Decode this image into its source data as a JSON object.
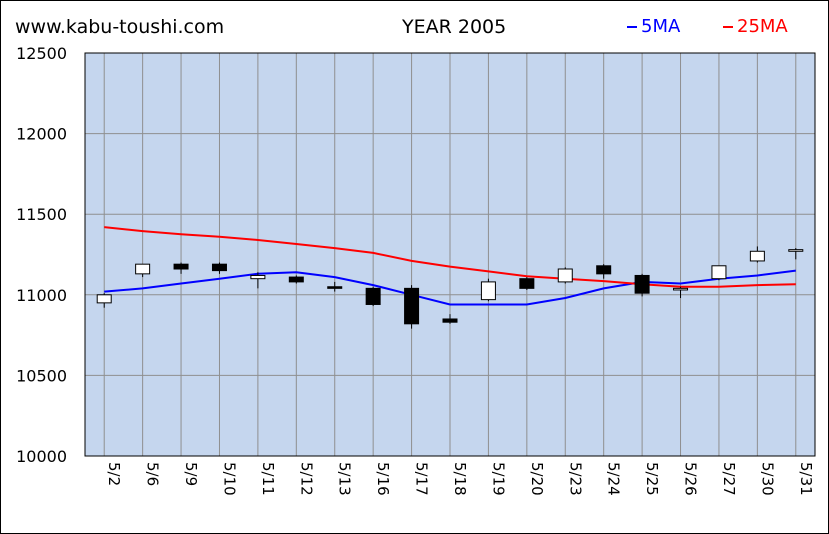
{
  "header": {
    "site": "www.kabu-toushi.com",
    "title": "YEAR 2005"
  },
  "legend": [
    {
      "label": "5MA",
      "color": "#0000ff"
    },
    {
      "label": "25MA",
      "color": "#ff0000"
    }
  ],
  "chart_data": {
    "type": "candlestick",
    "title": "YEAR 2005",
    "plot_bg": "#c5d6ee",
    "grid": true,
    "ylim": [
      10000,
      12500
    ],
    "y_ticks": [
      10000,
      10500,
      11000,
      11500,
      12000,
      12500
    ],
    "categories": [
      "5/2",
      "5/6",
      "5/9",
      "5/10",
      "5/11",
      "5/12",
      "5/13",
      "5/16",
      "5/17",
      "5/18",
      "5/19",
      "5/20",
      "5/23",
      "5/24",
      "5/25",
      "5/26",
      "5/27",
      "5/30",
      "5/31"
    ],
    "candles": [
      {
        "open": 10950,
        "close": 11000,
        "high": 11010,
        "low": 10920
      },
      {
        "open": 11130,
        "close": 11190,
        "high": 11190,
        "low": 11110
      },
      {
        "open": 11190,
        "close": 11160,
        "high": 11200,
        "low": 11130
      },
      {
        "open": 11190,
        "close": 11150,
        "high": 11200,
        "low": 11130
      },
      {
        "open": 11100,
        "close": 11120,
        "high": 11140,
        "low": 11040
      },
      {
        "open": 11110,
        "close": 11080,
        "high": 11120,
        "low": 11070
      },
      {
        "open": 11050,
        "close": 11040,
        "high": 11080,
        "low": 11020
      },
      {
        "open": 11040,
        "close": 10940,
        "high": 11050,
        "low": 10930
      },
      {
        "open": 11040,
        "close": 10820,
        "high": 11060,
        "low": 10790
      },
      {
        "open": 10850,
        "close": 10830,
        "high": 10880,
        "low": 10820
      },
      {
        "open": 10970,
        "close": 11080,
        "high": 11100,
        "low": 10960
      },
      {
        "open": 11100,
        "close": 11040,
        "high": 11110,
        "low": 11030
      },
      {
        "open": 11080,
        "close": 11160,
        "high": 11170,
        "low": 11070
      },
      {
        "open": 11180,
        "close": 11130,
        "high": 11190,
        "low": 11100
      },
      {
        "open": 11120,
        "close": 11010,
        "high": 11130,
        "low": 10990
      },
      {
        "open": 11030,
        "close": 11040,
        "high": 11050,
        "low": 10980
      },
      {
        "open": 11100,
        "close": 11180,
        "high": 11180,
        "low": 11090
      },
      {
        "open": 11210,
        "close": 11270,
        "high": 11300,
        "low": 11200
      },
      {
        "open": 11270,
        "close": 11280,
        "high": 11290,
        "low": 11220
      }
    ],
    "series": [
      {
        "name": "5MA",
        "color": "#0000ff",
        "values": [
          11020,
          11040,
          11070,
          11100,
          11130,
          11140,
          11110,
          11060,
          11000,
          10940,
          10940,
          10940,
          10980,
          11040,
          11080,
          11070,
          11100,
          11120,
          11150
        ]
      },
      {
        "name": "25MA",
        "color": "#ff0000",
        "values": [
          11420,
          11395,
          11375,
          11360,
          11340,
          11315,
          11290,
          11260,
          11210,
          11175,
          11145,
          11115,
          11100,
          11085,
          11065,
          11050,
          11050,
          11060,
          11065
        ]
      }
    ]
  }
}
